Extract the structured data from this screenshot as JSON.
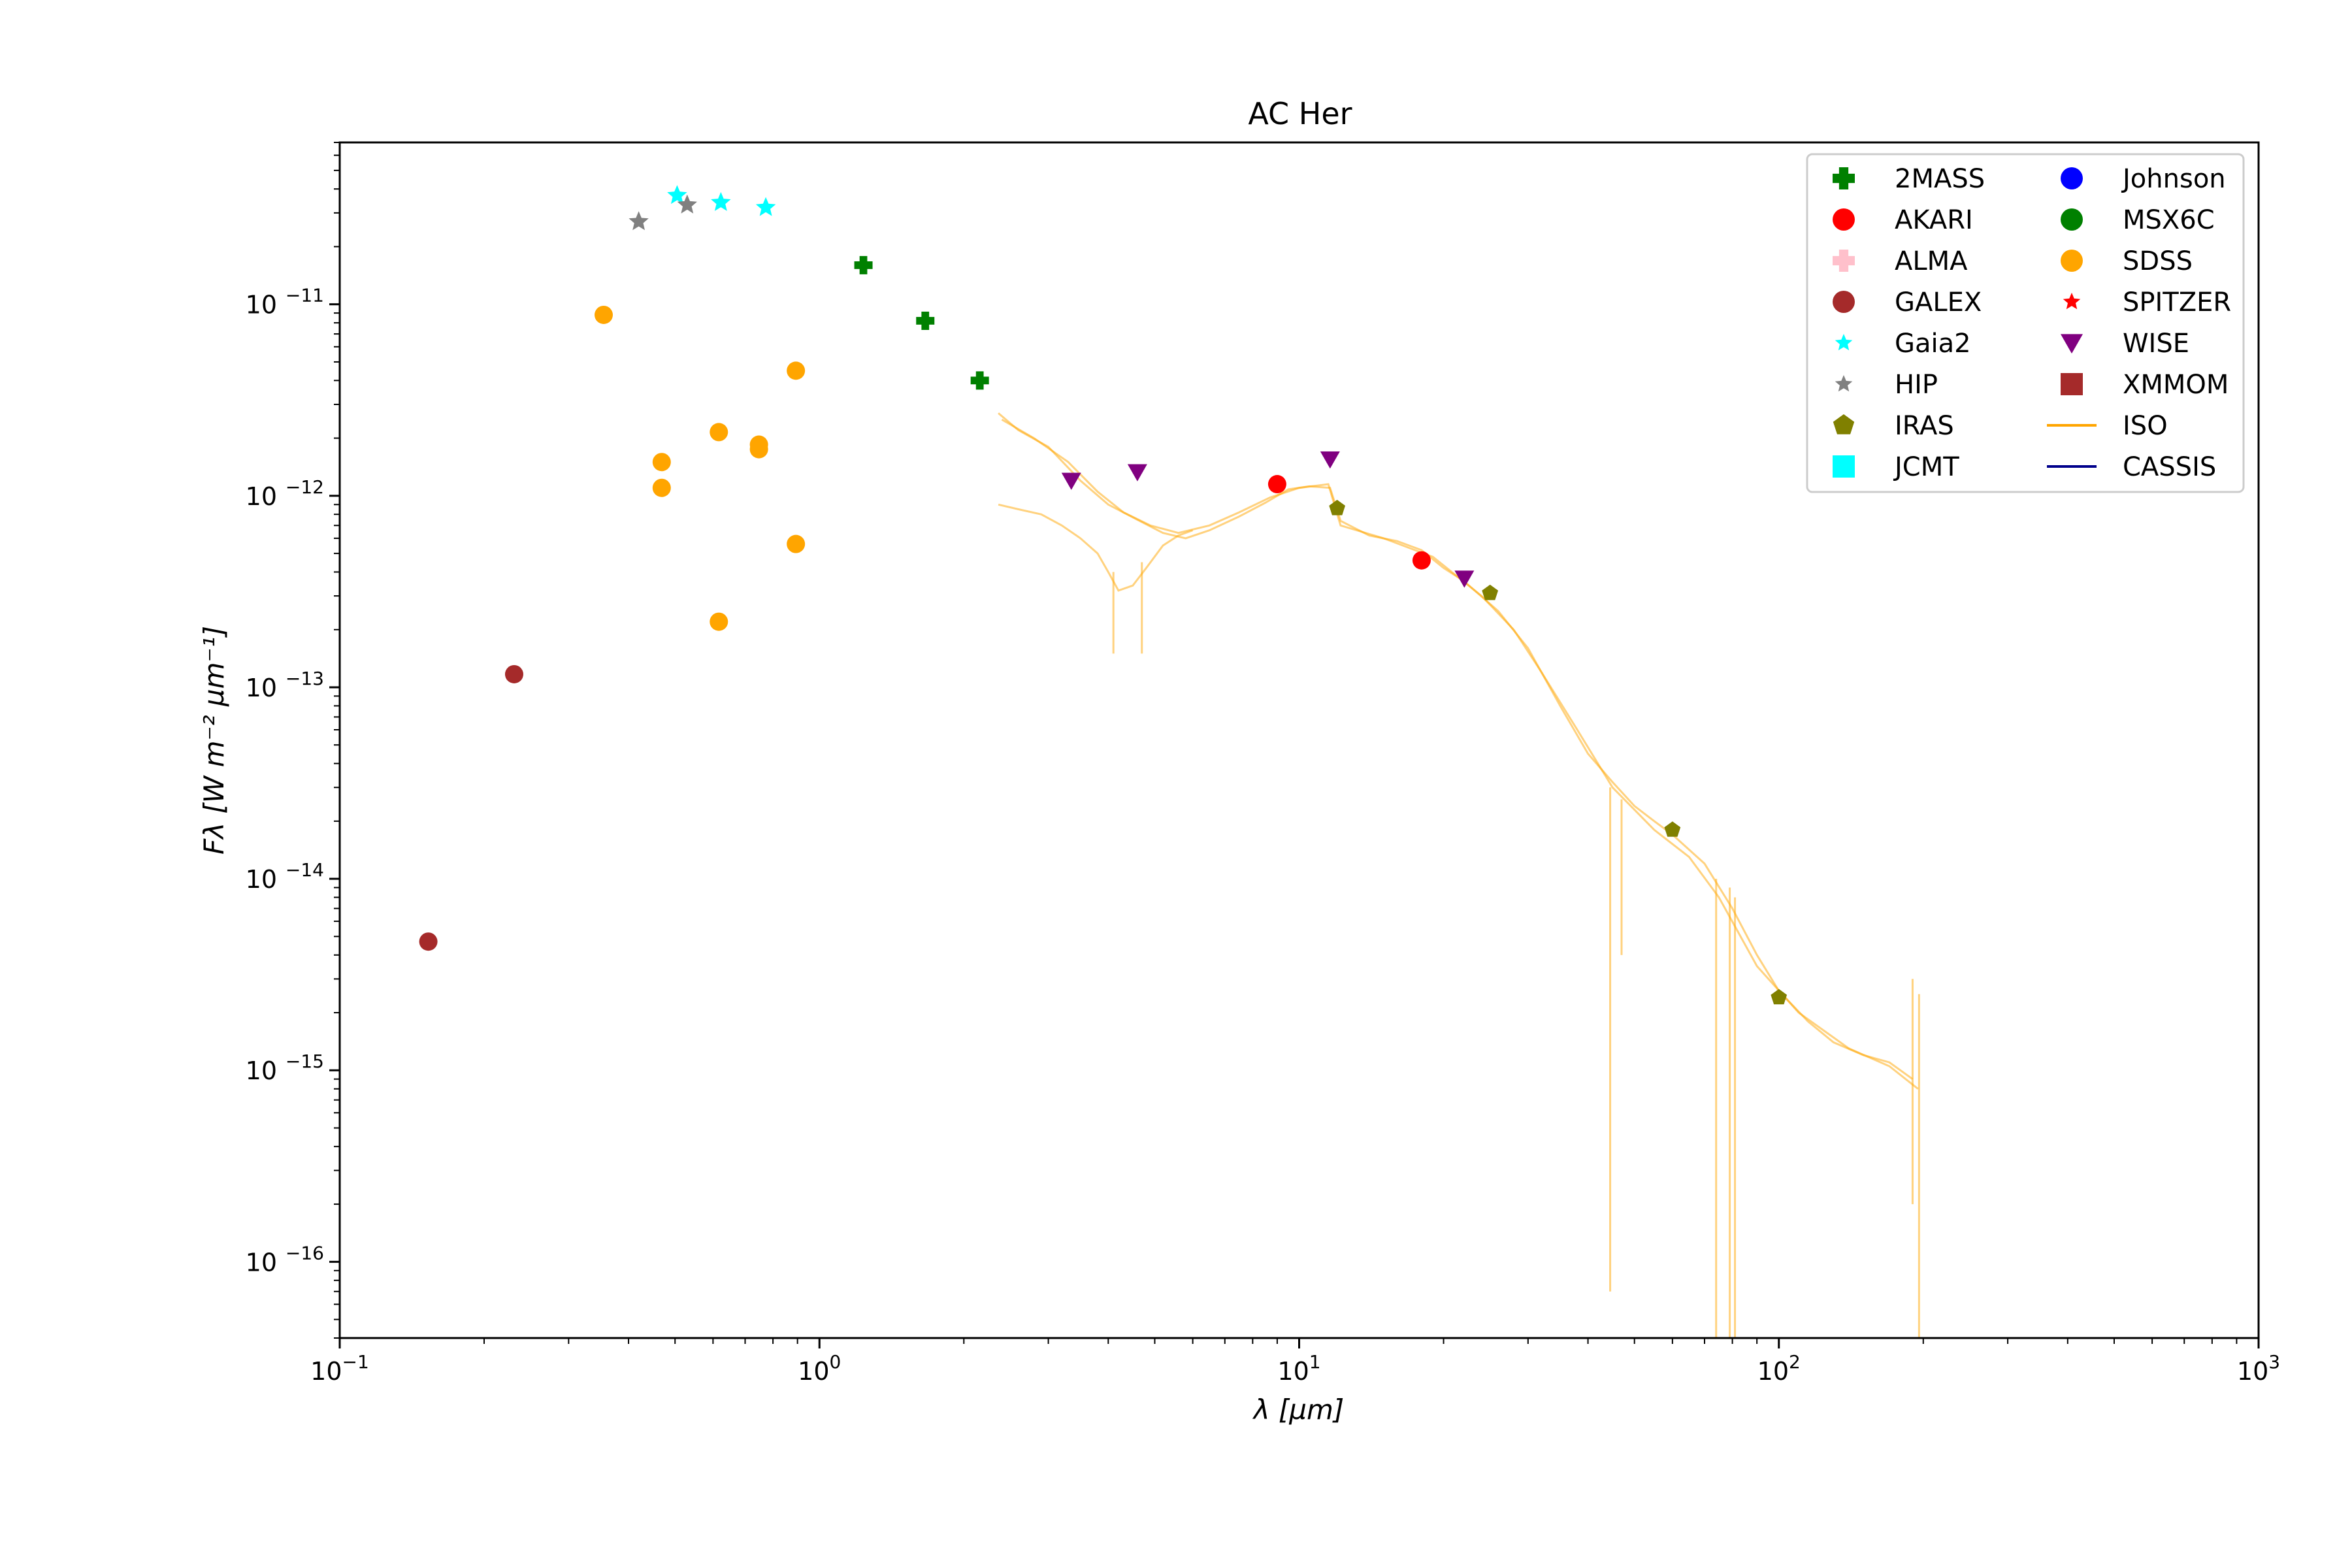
{
  "chart_data": {
    "type": "scatter",
    "title": "AC Her",
    "xlabel": "λ [μm]",
    "ylabel": "Fλ [W m⁻² μm⁻¹]",
    "x_scale": "log",
    "y_scale": "log",
    "xlim": [
      0.1,
      1000
    ],
    "ylim": [
      4e-17,
      7e-11
    ],
    "grid": false,
    "legend_position": "top-right",
    "x_ticks": [
      {
        "value": 0.1,
        "base": "10",
        "exp": "−1"
      },
      {
        "value": 1,
        "base": "10",
        "exp": "0"
      },
      {
        "value": 10,
        "base": "10",
        "exp": "1"
      },
      {
        "value": 100,
        "base": "10",
        "exp": "2"
      },
      {
        "value": 1000,
        "base": "10",
        "exp": "3"
      }
    ],
    "y_ticks": [
      {
        "value": 1e-16,
        "base": "10",
        "exp": "−16"
      },
      {
        "value": 1e-15,
        "base": "10",
        "exp": "−15"
      },
      {
        "value": 1e-14,
        "base": "10",
        "exp": "−14"
      },
      {
        "value": 1e-13,
        "base": "10",
        "exp": "−13"
      },
      {
        "value": 1e-12,
        "base": "10",
        "exp": "−12"
      },
      {
        "value": 1e-11,
        "base": "10",
        "exp": "−11"
      }
    ],
    "legend": [
      {
        "name": "2MASS",
        "color": "#008000",
        "marker": "plus"
      },
      {
        "name": "AKARI",
        "color": "#ff0000",
        "marker": "circle"
      },
      {
        "name": "ALMA",
        "color": "#ffc0cb",
        "marker": "plus"
      },
      {
        "name": "GALEX",
        "color": "#a52a2a",
        "marker": "circle"
      },
      {
        "name": "Gaia2",
        "color": "#00ffff",
        "marker": "star"
      },
      {
        "name": "HIP",
        "color": "#808080",
        "marker": "star"
      },
      {
        "name": "IRAS",
        "color": "#808000",
        "marker": "pentagon"
      },
      {
        "name": "JCMT",
        "color": "#00ffff",
        "marker": "square"
      },
      {
        "name": "Johnson",
        "color": "#0000ff",
        "marker": "circle"
      },
      {
        "name": "MSX6C",
        "color": "#008000",
        "marker": "circle"
      },
      {
        "name": "SDSS",
        "color": "#ffa500",
        "marker": "circle"
      },
      {
        "name": "SPITZER",
        "color": "#ff0000",
        "marker": "star"
      },
      {
        "name": "WISE",
        "color": "#800080",
        "marker": "triangle-down"
      },
      {
        "name": "XMMOM",
        "color": "#a52a2a",
        "marker": "square"
      },
      {
        "name": "ISO",
        "color": "#ffa500",
        "marker": "line"
      },
      {
        "name": "CASSIS",
        "color": "#00008b",
        "marker": "line"
      }
    ],
    "series": [
      {
        "name": "2MASS",
        "color": "#008000",
        "marker": "plus",
        "points": [
          [
            1.235,
            1.6e-11
          ],
          [
            1.662,
            8.2e-12
          ],
          [
            2.159,
            4e-12
          ]
        ]
      },
      {
        "name": "AKARI",
        "color": "#ff0000",
        "marker": "circle",
        "points": [
          [
            9.0,
            1.15e-12
          ],
          [
            18.0,
            4.6e-13
          ]
        ]
      },
      {
        "name": "GALEX",
        "color": "#a52a2a",
        "marker": "circle",
        "points": [
          [
            0.153,
            4.7e-15
          ],
          [
            0.231,
            1.17e-13
          ]
        ]
      },
      {
        "name": "Gaia2",
        "color": "#00ffff",
        "marker": "star",
        "points": [
          [
            0.505,
            3.7e-11
          ],
          [
            0.623,
            3.4e-11
          ],
          [
            0.773,
            3.2e-11
          ]
        ]
      },
      {
        "name": "HIP",
        "color": "#808080",
        "marker": "star",
        "points": [
          [
            0.42,
            2.7e-11
          ],
          [
            0.53,
            3.3e-11
          ]
        ]
      },
      {
        "name": "IRAS",
        "color": "#808000",
        "marker": "pentagon",
        "points": [
          [
            12.0,
            8.6e-13
          ],
          [
            25.0,
            3.1e-13
          ],
          [
            60.0,
            1.8e-14
          ],
          [
            100.0,
            2.4e-15
          ]
        ]
      },
      {
        "name": "SDSS",
        "color": "#ffa500",
        "marker": "circle",
        "points": [
          [
            0.355,
            8.8e-12
          ],
          [
            0.469,
            1.5e-12
          ],
          [
            0.469,
            1.1e-12
          ],
          [
            0.617,
            2.15e-12
          ],
          [
            0.617,
            2.2e-13
          ],
          [
            0.748,
            1.85e-12
          ],
          [
            0.748,
            1.75e-12
          ],
          [
            0.893,
            4.5e-12
          ],
          [
            0.893,
            5.6e-13
          ]
        ]
      },
      {
        "name": "WISE",
        "color": "#800080",
        "marker": "triangle-down",
        "points": [
          [
            3.35,
            1.2e-12
          ],
          [
            4.6,
            1.33e-12
          ],
          [
            11.6,
            1.55e-12
          ],
          [
            22.1,
            3.7e-13
          ]
        ]
      }
    ],
    "lines": [
      {
        "name": "ISO",
        "color": "#ffa500",
        "opacity": 0.5,
        "points": [
          [
            2.36,
            2.7e-12
          ],
          [
            2.6,
            2.2e-12
          ],
          [
            3.0,
            1.8e-12
          ],
          [
            3.5,
            1.2e-12
          ],
          [
            4.0,
            9e-13
          ],
          [
            4.6,
            7.5e-13
          ],
          [
            5.2,
            6.4e-13
          ],
          [
            5.8,
            6e-13
          ],
          [
            6.5,
            6.6e-13
          ],
          [
            7.5,
            7.8e-13
          ],
          [
            8.5,
            9.2e-13
          ],
          [
            9.5,
            1.08e-12
          ],
          [
            10.5,
            1.12e-12
          ],
          [
            11.6,
            1.1e-12
          ],
          [
            12.2,
            7.4e-13
          ],
          [
            14.0,
            6.2e-13
          ],
          [
            16.0,
            5.8e-13
          ],
          [
            18.0,
            5.2e-13
          ],
          [
            20.0,
            4.2e-13
          ],
          [
            22.0,
            3.6e-13
          ],
          [
            26.0,
            2.5e-13
          ],
          [
            30.0,
            1.6e-13
          ],
          [
            35.0,
            8e-14
          ],
          [
            40.0,
            4.5e-14
          ],
          [
            45.0,
            3.2e-14
          ],
          [
            50.0,
            2.4e-14
          ],
          [
            55.0,
            2e-14
          ],
          [
            60.0,
            1.7e-14
          ],
          [
            70.0,
            1.2e-14
          ],
          [
            80.0,
            7e-15
          ],
          [
            90.0,
            4e-15
          ],
          [
            100.0,
            2.6e-15
          ],
          [
            115.0,
            1.8e-15
          ],
          [
            130.0,
            1.4e-15
          ],
          [
            150.0,
            1.2e-15
          ],
          [
            170.0,
            1.1e-15
          ],
          [
            190.0,
            9e-16
          ]
        ]
      },
      {
        "name": "ISO",
        "color": "#ffa500",
        "opacity": 0.5,
        "points": [
          [
            2.4,
            2.5e-12
          ],
          [
            2.8,
            2e-12
          ],
          [
            3.3,
            1.5e-12
          ],
          [
            3.8,
            1.05e-12
          ],
          [
            4.3,
            8.2e-13
          ],
          [
            4.9,
            7e-13
          ],
          [
            5.6,
            6.4e-13
          ],
          [
            6.5,
            7e-13
          ],
          [
            7.5,
            8.2e-13
          ],
          [
            8.7,
            9.8e-13
          ],
          [
            10.0,
            1.1e-12
          ],
          [
            11.5,
            1.15e-12
          ],
          [
            12.2,
            7e-13
          ],
          [
            15.0,
            6e-13
          ],
          [
            19.0,
            4.8e-13
          ],
          [
            24.0,
            3e-13
          ],
          [
            28.0,
            2e-13
          ],
          [
            32.0,
            1.2e-13
          ],
          [
            38.0,
            6e-14
          ],
          [
            45.0,
            3e-14
          ],
          [
            55.0,
            1.8e-14
          ],
          [
            65.0,
            1.3e-14
          ],
          [
            75.0,
            8e-15
          ],
          [
            90.0,
            3.5e-15
          ],
          [
            110.0,
            2e-15
          ],
          [
            140.0,
            1.3e-15
          ],
          [
            170.0,
            1.05e-15
          ],
          [
            195.0,
            8e-16
          ]
        ]
      },
      {
        "name": "ISO",
        "color": "#ffa500",
        "opacity": 0.5,
        "points": [
          [
            2.36,
            9e-13
          ],
          [
            2.6,
            8.5e-13
          ],
          [
            2.9,
            8e-13
          ],
          [
            3.2,
            7e-13
          ],
          [
            3.5,
            6e-13
          ],
          [
            3.8,
            5e-13
          ],
          [
            4.0,
            4e-13
          ],
          [
            4.2,
            3.2e-13
          ],
          [
            4.5,
            3.4e-13
          ],
          [
            4.8,
            4.2e-13
          ],
          [
            5.2,
            5.5e-13
          ],
          [
            5.6,
            6.2e-13
          ],
          [
            6.0,
            6.6e-13
          ]
        ]
      }
    ],
    "drops": [
      {
        "series": "ISO",
        "x": 4.1,
        "y_top": 4e-13,
        "y_bottom": 1.5e-13
      },
      {
        "series": "ISO",
        "x": 4.7,
        "y_top": 4.5e-13,
        "y_bottom": 1.5e-13
      },
      {
        "series": "ISO",
        "x": 44.5,
        "y_top": 3e-14,
        "y_bottom": 7e-17
      },
      {
        "series": "ISO",
        "x": 47.0,
        "y_top": 2.6e-14,
        "y_bottom": 4e-15
      },
      {
        "series": "ISO",
        "x": 74.0,
        "y_top": 1e-14,
        "y_bottom": 4e-17
      },
      {
        "series": "ISO",
        "x": 79.0,
        "y_top": 9e-15,
        "y_bottom": 4e-17
      },
      {
        "series": "ISO",
        "x": 81.0,
        "y_top": 8e-15,
        "y_bottom": 4e-17
      },
      {
        "series": "ISO",
        "x": 190.0,
        "y_top": 3e-15,
        "y_bottom": 2e-16
      },
      {
        "series": "ISO",
        "x": 196.0,
        "y_top": 2.5e-15,
        "y_bottom": 4e-17
      }
    ]
  }
}
